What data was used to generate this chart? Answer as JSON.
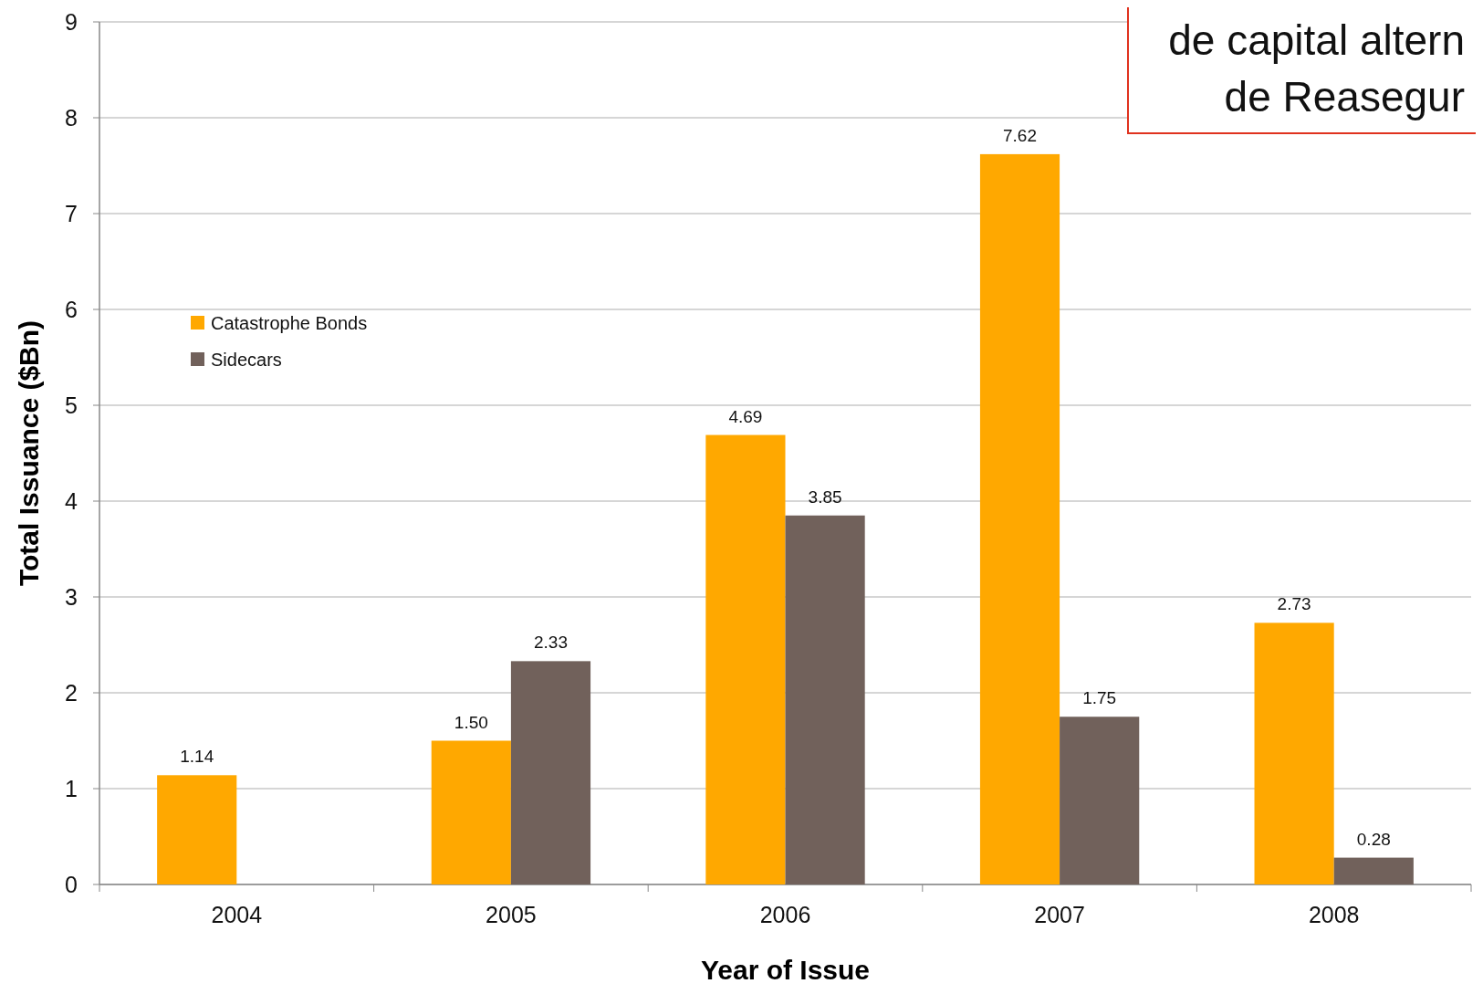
{
  "chart_data": {
    "type": "bar",
    "xlabel": "Year of Issue",
    "ylabel": "Total Issuance ($Bn)",
    "categories": [
      "2004",
      "2005",
      "2006",
      "2007",
      "2008"
    ],
    "series": [
      {
        "name": "Catastrophe Bonds",
        "color": "#ffa800",
        "values": [
          1.14,
          1.5,
          4.69,
          7.62,
          2.73
        ],
        "value_labels": [
          "1.14",
          "1.50",
          "4.69",
          "7.62",
          "2.73"
        ]
      },
      {
        "name": "Sidecars",
        "color": "#71615b",
        "values": [
          null,
          2.33,
          3.85,
          1.75,
          0.28
        ],
        "value_labels": [
          null,
          "2.33",
          "3.85",
          "1.75",
          "0.28"
        ]
      }
    ],
    "ylim": [
      0,
      9
    ],
    "yticks": [
      0,
      1,
      2,
      3,
      4,
      5,
      6,
      7,
      8,
      9
    ],
    "grid": "y",
    "legend": "top left",
    "annotations": [
      "de capital altern\nde Reasegur"
    ]
  }
}
